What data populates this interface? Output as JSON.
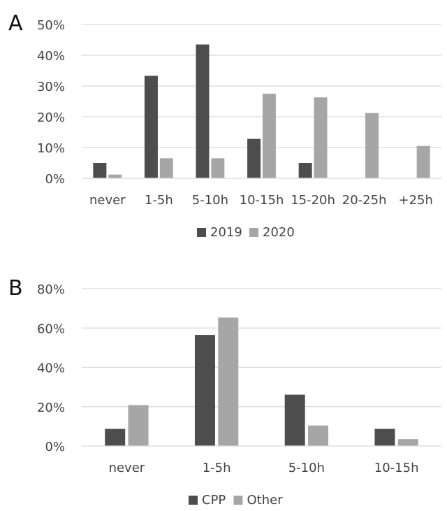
{
  "chart_data": [
    {
      "type": "bar",
      "panel_label": "A",
      "categories": [
        "never",
        "1-5h",
        "5-10h",
        "10-15h",
        "15-20h",
        "20-25h",
        "+25h"
      ],
      "series": [
        {
          "name": "2019",
          "color": "#4d4d4d",
          "values": [
            5,
            33.3,
            43.5,
            12.8,
            5,
            0,
            0
          ]
        },
        {
          "name": "2020",
          "color": "#a6a6a6",
          "values": [
            1.2,
            6.5,
            6.5,
            27.5,
            26.3,
            21.2,
            10.5
          ]
        }
      ],
      "yticks": [
        "0%",
        "10%",
        "20%",
        "30%",
        "40%",
        "50%"
      ],
      "ylim": [
        0,
        50
      ],
      "grid": true,
      "legend_position": "bottom"
    },
    {
      "type": "bar",
      "panel_label": "B",
      "categories": [
        "never",
        "1-5h",
        "5-10h",
        "10-15h"
      ],
      "series": [
        {
          "name": "CPP",
          "color": "#4d4d4d",
          "values": [
            8.7,
            56.5,
            26.1,
            8.7
          ]
        },
        {
          "name": "Other",
          "color": "#a6a6a6",
          "values": [
            20.8,
            65.3,
            10.4,
            3.5
          ]
        }
      ],
      "yticks": [
        "0%",
        "20%",
        "40%",
        "60%",
        "80%"
      ],
      "ylim": [
        0,
        80
      ],
      "grid": true,
      "legend_position": "bottom"
    }
  ]
}
